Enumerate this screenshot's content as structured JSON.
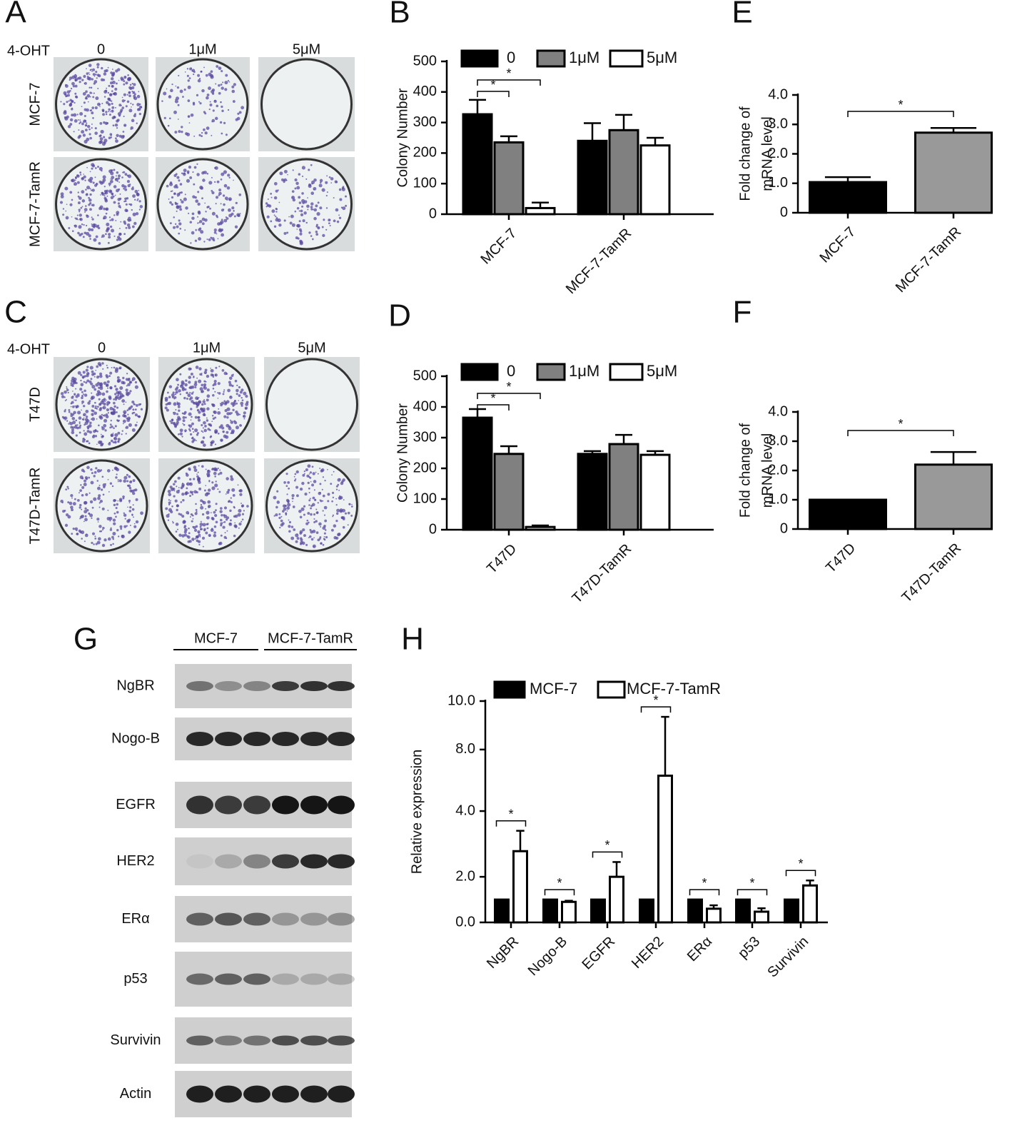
{
  "photo_panels": [
    {
      "panel": "A",
      "treatment": "4-OHT",
      "columns": [
        "0",
        "1μM",
        "5μM"
      ],
      "rows": [
        "MCF-7",
        "MCF-7-TamR"
      ]
    },
    {
      "panel": "C",
      "treatment": "4-OHT",
      "columns": [
        "0",
        "1μM",
        "5μM"
      ],
      "rows": [
        "T47D",
        "T47D-TamR"
      ]
    }
  ],
  "western_blot": {
    "panel": "G",
    "groups": [
      "MCF-7",
      "MCF-7-TamR"
    ],
    "proteins": [
      "NgBR",
      "Nogo-B",
      "EGFR",
      "HER2",
      "ERα",
      "p53",
      "Survivin",
      "Actin"
    ]
  },
  "chart_data": [
    {
      "type": "bar",
      "panel": "B",
      "ylabel": "Colony Number",
      "categories": [
        "MCF-7",
        "MCF-7-TamR"
      ],
      "series": [
        {
          "name": "0",
          "color": "#000000",
          "values": [
            327,
            240
          ],
          "errors": [
            47,
            58
          ]
        },
        {
          "name": "1μM",
          "color": "#808080",
          "values": [
            235,
            275
          ],
          "errors": [
            20,
            50
          ]
        },
        {
          "name": "5μM",
          "color": "#ffffff",
          "values": [
            20,
            225
          ],
          "errors": [
            18,
            25
          ]
        }
      ],
      "ylim": [
        0,
        500
      ],
      "yticks": [
        0,
        100,
        200,
        300,
        400,
        500
      ],
      "legend": true,
      "annotations": [
        "*",
        "*"
      ]
    },
    {
      "type": "bar",
      "panel": "D",
      "ylabel": "Colony Number",
      "categories": [
        "T47D",
        "T47D-TamR"
      ],
      "series": [
        {
          "name": "0",
          "color": "#000000",
          "values": [
            365,
            247
          ],
          "errors": [
            28,
            9
          ]
        },
        {
          "name": "1μM",
          "color": "#808080",
          "values": [
            247,
            279
          ],
          "errors": [
            25,
            30
          ]
        },
        {
          "name": "5μM",
          "color": "#ffffff",
          "values": [
            9,
            244
          ],
          "errors": [
            5,
            12
          ]
        }
      ],
      "ylim": [
        0,
        500
      ],
      "yticks": [
        0,
        100,
        200,
        300,
        400,
        500
      ],
      "legend": true,
      "annotations": [
        "*",
        "*"
      ]
    },
    {
      "type": "bar",
      "panel": "E",
      "ylabel": [
        "Fold change of",
        "mRNA level"
      ],
      "categories": [
        "MCF-7",
        "MCF-7-TamR"
      ],
      "series": [
        {
          "colors": [
            "#000000",
            "#999999"
          ],
          "values": [
            1.04,
            2.72
          ],
          "errors": [
            0.17,
            0.16
          ]
        }
      ],
      "ylim": [
        0,
        4
      ],
      "yticks": [
        0,
        {
          "value": 1,
          "label": "1.0"
        },
        {
          "value": 2,
          "label": "2.0"
        },
        {
          "value": 3,
          "label": "3.0"
        },
        {
          "value": 4,
          "label": "4.0"
        }
      ],
      "legend": false,
      "annotations": [
        "*"
      ]
    },
    {
      "type": "bar",
      "panel": "F",
      "ylabel": [
        "Fold change of",
        "mRNA level"
      ],
      "categories": [
        "T47D",
        "T47D-TamR"
      ],
      "series": [
        {
          "colors": [
            "#000000",
            "#999999"
          ],
          "values": [
            1.0,
            2.2
          ],
          "errors": [
            0,
            0.43
          ]
        }
      ],
      "ylim": [
        0,
        4
      ],
      "yticks": [
        0,
        {
          "value": 1,
          "label": "1.0"
        },
        {
          "value": 2,
          "label": "2.0"
        },
        {
          "value": 3,
          "label": "3.0"
        },
        {
          "value": 4,
          "label": "4.0"
        }
      ],
      "legend": false,
      "annotations": [
        "*"
      ]
    },
    {
      "type": "bar",
      "panel": "H",
      "ylabel": "Relative expression",
      "categories": [
        "NgBR",
        "Nogo-B",
        "EGFR",
        "HER2",
        "ERα",
        "p53",
        "Survivin"
      ],
      "series": [
        {
          "name": "MCF-7",
          "color": "#000000",
          "values": [
            1,
            1,
            1,
            1,
            1,
            1,
            1
          ]
        },
        {
          "name": "MCF-7-TamR",
          "color": "#ffffff",
          "values": [
            2.78,
            0.9,
            2.0,
            6.3,
            0.6,
            0.47,
            1.62
          ],
          "errors": [
            0.62,
            0.05,
            0.45,
            3.05,
            0.15,
            0.15,
            0.22
          ]
        }
      ],
      "ylim": [
        0,
        10
      ],
      "yticks": [
        {
          "value": 0,
          "label": "0.0"
        },
        {
          "value": 2,
          "label": "2.0"
        },
        {
          "value": 4,
          "label": "4.0"
        },
        {
          "value": 8,
          "label": "8.0"
        },
        {
          "value": 10,
          "label": "10.0"
        }
      ],
      "legend": true,
      "annotations": [
        "*",
        "*",
        "*",
        "*",
        "*",
        "*",
        "*"
      ]
    }
  ]
}
